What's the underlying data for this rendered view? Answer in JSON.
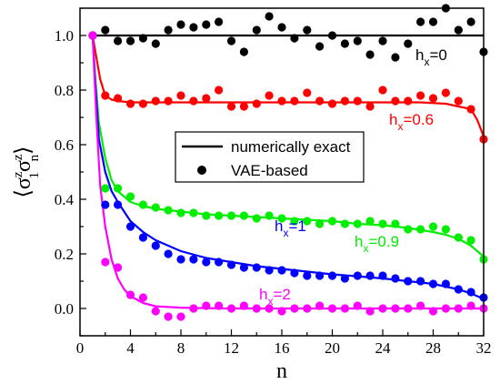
{
  "chart_data": {
    "type": "scatter",
    "xlabel": "n",
    "ylabel": {
      "base": "σ",
      "sup1": "z",
      "sub1": "1",
      "sup2": "z",
      "sub2": "n"
    },
    "xlim": [
      0,
      32
    ],
    "ylim": [
      -0.1,
      1.1
    ],
    "x_ticks": [
      "0",
      "4",
      "8",
      "12",
      "16",
      "20",
      "24",
      "28",
      "32"
    ],
    "y_ticks": [
      "0.0",
      "0.2",
      "0.4",
      "0.6",
      "0.8",
      "1.0"
    ],
    "grid": false,
    "legend": {
      "placement": "center-right",
      "entries": [
        {
          "label": "numerically exact",
          "marker": "line"
        },
        {
          "label": "VAE-based",
          "marker": "dot"
        }
      ]
    },
    "series": [
      {
        "annotation": {
          "base": "h",
          "sub": "x",
          "value": "=0"
        },
        "color": "#000000",
        "exact": {
          "x": [
            1,
            2,
            32
          ],
          "y": [
            1.0,
            1.0,
            1.0
          ]
        },
        "vae": {
          "x": [
            1,
            2,
            3,
            4,
            5,
            6,
            7,
            8,
            9,
            10,
            11,
            12,
            13,
            14,
            15,
            16,
            17,
            18,
            19,
            20,
            21,
            22,
            23,
            24,
            25,
            26,
            27,
            28,
            29,
            30,
            31,
            32
          ],
          "y": [
            1.0,
            1.02,
            0.98,
            0.98,
            0.99,
            0.97,
            1.02,
            1.04,
            1.03,
            1.04,
            1.05,
            0.98,
            0.94,
            1.02,
            1.07,
            1.03,
            0.99,
            1.02,
            0.96,
            1.0,
            0.97,
            0.98,
            0.93,
            0.98,
            0.92,
            0.97,
            1.05,
            1.05,
            1.1,
            1.02,
            1.05,
            0.94
          ]
        }
      },
      {
        "annotation": {
          "base": "h",
          "sub": "x",
          "value": "=0.6"
        },
        "color": "#ff0000",
        "exact": {
          "x": [
            1,
            1.3,
            1.6,
            2,
            2.5,
            3,
            4,
            6,
            10,
            16,
            20,
            24,
            27,
            29,
            30,
            31,
            31.5,
            32
          ],
          "y": [
            1.0,
            0.92,
            0.84,
            0.78,
            0.765,
            0.76,
            0.755,
            0.755,
            0.755,
            0.755,
            0.755,
            0.755,
            0.755,
            0.75,
            0.74,
            0.73,
            0.69,
            0.63
          ]
        },
        "vae": {
          "x": [
            1,
            2,
            3,
            4,
            5,
            6,
            7,
            8,
            9,
            10,
            11,
            12,
            13,
            14,
            15,
            16,
            17,
            18,
            19,
            20,
            21,
            22,
            23,
            24,
            25,
            26,
            27,
            28,
            29,
            30,
            31,
            32
          ],
          "y": [
            1.0,
            0.78,
            0.77,
            0.75,
            0.75,
            0.76,
            0.76,
            0.78,
            0.76,
            0.77,
            0.8,
            0.74,
            0.74,
            0.75,
            0.78,
            0.76,
            0.76,
            0.79,
            0.76,
            0.75,
            0.76,
            0.76,
            0.74,
            0.8,
            0.76,
            0.76,
            0.78,
            0.77,
            0.79,
            0.76,
            0.73,
            0.62
          ]
        }
      },
      {
        "annotation": {
          "base": "h",
          "sub": "x",
          "value": "=0.9"
        },
        "color": "#00ee00",
        "exact": {
          "x": [
            1,
            1.2,
            1.5,
            2,
            2.5,
            3,
            4,
            5,
            6,
            8,
            10,
            12,
            14,
            16,
            18,
            20,
            22,
            24,
            26,
            28,
            29,
            30,
            31,
            32
          ],
          "y": [
            1.0,
            0.85,
            0.68,
            0.55,
            0.47,
            0.43,
            0.39,
            0.375,
            0.365,
            0.355,
            0.345,
            0.34,
            0.335,
            0.33,
            0.325,
            0.32,
            0.31,
            0.305,
            0.295,
            0.28,
            0.27,
            0.255,
            0.23,
            0.19
          ]
        },
        "vae": {
          "x": [
            1,
            2,
            3,
            4,
            5,
            6,
            7,
            8,
            9,
            10,
            11,
            12,
            13,
            14,
            15,
            16,
            17,
            18,
            19,
            20,
            21,
            22,
            23,
            24,
            25,
            26,
            27,
            28,
            29,
            30,
            31,
            32
          ],
          "y": [
            1.0,
            0.44,
            0.44,
            0.41,
            0.38,
            0.37,
            0.36,
            0.35,
            0.35,
            0.34,
            0.34,
            0.34,
            0.34,
            0.33,
            0.34,
            0.33,
            0.32,
            0.32,
            0.31,
            0.32,
            0.31,
            0.31,
            0.32,
            0.31,
            0.31,
            0.29,
            0.29,
            0.3,
            0.29,
            0.26,
            0.25,
            0.18
          ]
        }
      },
      {
        "annotation": {
          "base": "h",
          "sub": "x",
          "value": "=1"
        },
        "color": "#0000ff",
        "exact": {
          "x": [
            1,
            1.2,
            1.5,
            2,
            2.5,
            3,
            4,
            5,
            6,
            8,
            10,
            12,
            14,
            16,
            18,
            20,
            22,
            24,
            26,
            28,
            29,
            30,
            31,
            32
          ],
          "y": [
            1.0,
            0.83,
            0.62,
            0.5,
            0.43,
            0.39,
            0.32,
            0.28,
            0.25,
            0.21,
            0.185,
            0.17,
            0.155,
            0.145,
            0.135,
            0.125,
            0.118,
            0.11,
            0.1,
            0.09,
            0.08,
            0.07,
            0.055,
            0.035
          ]
        },
        "vae": {
          "x": [
            1,
            2,
            3,
            4,
            5,
            6,
            7,
            8,
            9,
            10,
            11,
            12,
            13,
            14,
            15,
            16,
            17,
            18,
            19,
            20,
            21,
            22,
            23,
            24,
            25,
            26,
            27,
            28,
            29,
            30,
            31,
            32
          ],
          "y": [
            1.0,
            0.38,
            0.38,
            0.3,
            0.26,
            0.23,
            0.2,
            0.18,
            0.18,
            0.17,
            0.17,
            0.16,
            0.15,
            0.15,
            0.14,
            0.14,
            0.13,
            0.12,
            0.12,
            0.12,
            0.11,
            0.12,
            0.12,
            0.12,
            0.11,
            0.1,
            0.1,
            0.09,
            0.09,
            0.07,
            0.06,
            0.04
          ]
        }
      },
      {
        "annotation": {
          "base": "h",
          "sub": "x",
          "value": "=2"
        },
        "color": "#ff00ff",
        "exact": {
          "x": [
            1,
            1.3,
            1.6,
            2,
            2.5,
            3,
            3.5,
            4,
            5,
            6,
            8,
            10,
            12,
            16,
            20,
            24,
            28,
            32
          ],
          "y": [
            1.0,
            0.7,
            0.45,
            0.3,
            0.18,
            0.11,
            0.07,
            0.045,
            0.02,
            0.008,
            0.003,
            0.001,
            0.0,
            0.0,
            0.0,
            0.0,
            0.0,
            0.0
          ]
        },
        "vae": {
          "x": [
            1,
            2,
            3,
            4,
            5,
            6,
            7,
            8,
            9,
            10,
            11,
            12,
            13,
            14,
            15,
            16,
            17,
            18,
            19,
            20,
            21,
            22,
            23,
            24,
            25,
            26,
            27,
            28,
            29,
            30,
            31,
            32
          ],
          "y": [
            1.0,
            0.17,
            0.15,
            0.05,
            0.04,
            -0.01,
            -0.03,
            -0.03,
            0.0,
            0.01,
            0.01,
            0.0,
            0.01,
            0.0,
            0.0,
            -0.01,
            0.0,
            0.0,
            0.01,
            0.0,
            0.0,
            0.01,
            -0.01,
            0.0,
            0.0,
            0.0,
            0.01,
            -0.01,
            0.0,
            0.0,
            0.01,
            0.0
          ]
        }
      }
    ]
  }
}
